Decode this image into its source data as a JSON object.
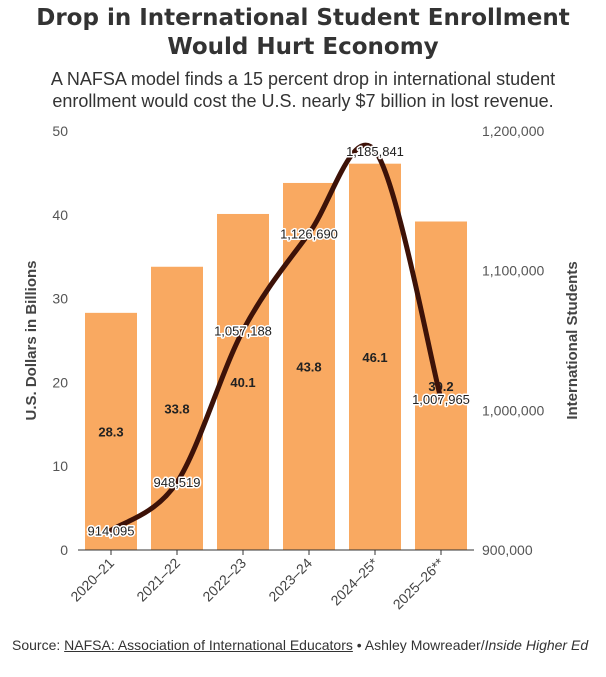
{
  "header": {
    "title": "Drop in International Student Enrollment Would Hurt Economy",
    "subtitle": "A NAFSA model finds a 15 percent drop in international student enrollment would cost the U.S. nearly $7 billion in lost revenue."
  },
  "footer": {
    "source_label": "Source:",
    "source_link": "NAFSA: Association of International Educators",
    "separator": "•",
    "byline": "Ashley Mowreader/",
    "publication": "Inside Higher Ed"
  },
  "colors": {
    "bar": "#F9A961",
    "line": "#3D1208",
    "text": "#333333"
  },
  "chart_data": {
    "type": "bar",
    "categories": [
      "2020–21",
      "2021–22",
      "2022–23",
      "2023–24",
      "2024–25*",
      "2025–26**"
    ],
    "series": [
      {
        "axis": "left",
        "kind": "bar",
        "values": [
          28.3,
          33.8,
          40.1,
          43.8,
          46.1,
          39.2
        ],
        "labels": [
          "28.3",
          "33.8",
          "40.1",
          "43.8",
          "46.1",
          "39.2"
        ]
      },
      {
        "axis": "right",
        "kind": "line",
        "values": [
          914095,
          948519,
          1057188,
          1126690,
          1185841,
          1007965
        ],
        "labels": [
          "914,095",
          "948,519",
          "1,057,188",
          "1,126,690",
          "1,185,841",
          "1,007,965"
        ]
      }
    ],
    "ylabel": "U.S. Dollars in Billions",
    "y2label": "International Students",
    "ylim": [
      0,
      50
    ],
    "y2lim": [
      900000,
      1200000
    ],
    "yticks": [
      0,
      10,
      20,
      30,
      40,
      50
    ],
    "y2ticks": [
      "900,000",
      "1,000,000",
      "1,100,000",
      "1,200,000"
    ],
    "y2tick_values": [
      900000,
      1000000,
      1100000,
      1200000
    ],
    "grid": false,
    "legend": "none"
  }
}
